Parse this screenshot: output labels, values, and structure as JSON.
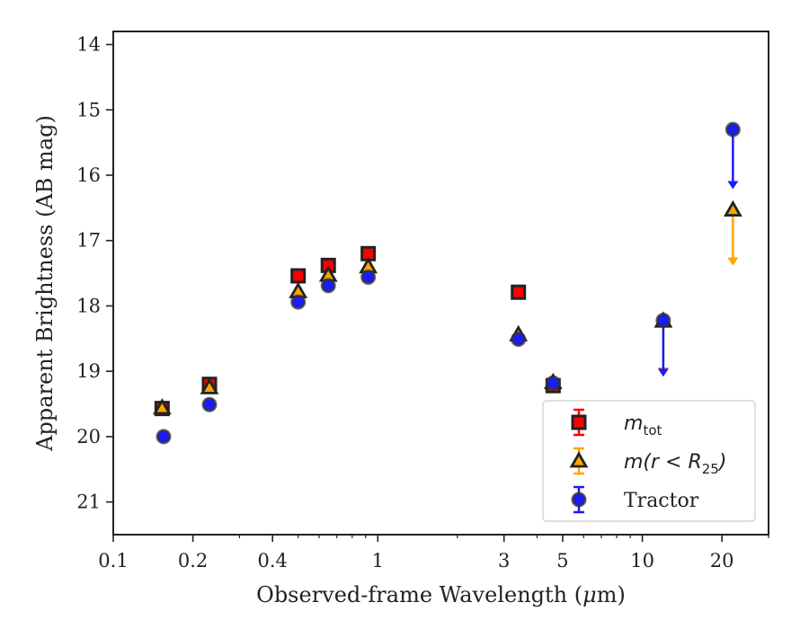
{
  "chart_data": {
    "type": "scatter",
    "xlabel_text": "Observed-frame Wavelength (",
    "xlabel_mu": "μ",
    "xlabel_tail": "m)",
    "ylabel": "Apparent Brightness (AB mag)",
    "xscale": "log",
    "xlim": [
      0.1,
      30
    ],
    "ylim": [
      21.5,
      13.8
    ],
    "y_inverted": true,
    "grid": false,
    "legend_position": "lower-right",
    "x_ticks": [
      {
        "value": 0.1,
        "label": "0.1"
      },
      {
        "value": 0.2,
        "label": "0.2"
      },
      {
        "value": 0.4,
        "label": "0.4"
      },
      {
        "value": 1,
        "label": "1"
      },
      {
        "value": 3,
        "label": "3"
      },
      {
        "value": 5,
        "label": "5"
      },
      {
        "value": 10,
        "label": "10"
      },
      {
        "value": 20,
        "label": "20"
      }
    ],
    "y_ticks": [
      {
        "value": 14,
        "label": "14"
      },
      {
        "value": 15,
        "label": "15"
      },
      {
        "value": 16,
        "label": "16"
      },
      {
        "value": 17,
        "label": "17"
      },
      {
        "value": 18,
        "label": "18"
      },
      {
        "value": 19,
        "label": "19"
      },
      {
        "value": 20,
        "label": "20"
      },
      {
        "value": 21,
        "label": "21"
      }
    ],
    "series": [
      {
        "name": "m_tot",
        "label_main": "m",
        "label_sub": "tot",
        "label_rest": "",
        "marker": "square",
        "color": "#ff0000",
        "errcolor": "#ff0000",
        "points": [
          {
            "x": 0.153,
            "y": 19.57
          },
          {
            "x": 0.231,
            "y": 19.2
          },
          {
            "x": 0.5,
            "y": 17.54
          },
          {
            "x": 0.65,
            "y": 17.38
          },
          {
            "x": 0.92,
            "y": 17.2
          },
          {
            "x": 3.4,
            "y": 17.79
          },
          {
            "x": 4.6,
            "y": 19.22
          }
        ],
        "upper_limits": []
      },
      {
        "name": "m(r<R25)",
        "label_main": "m(r < R",
        "label_sub": "25",
        "label_rest": ")",
        "marker": "triangle",
        "color": "#ffa500",
        "errcolor": "#ffa500",
        "points": [
          {
            "x": 0.153,
            "y": 19.56
          },
          {
            "x": 0.231,
            "y": 19.25
          },
          {
            "x": 0.5,
            "y": 17.78
          },
          {
            "x": 0.65,
            "y": 17.53
          },
          {
            "x": 0.92,
            "y": 17.4
          },
          {
            "x": 3.4,
            "y": 18.44
          },
          {
            "x": 4.6,
            "y": 19.17
          }
        ],
        "upper_limits": [
          {
            "x": 12,
            "y": 18.23,
            "to": 19.05
          },
          {
            "x": 22,
            "y": 16.53,
            "to": 17.37
          }
        ]
      },
      {
        "name": "Tractor",
        "label_main": "Tractor",
        "label_sub": "",
        "label_rest": "",
        "marker": "circle",
        "color": "#1a1aff",
        "errcolor": "#1a1aff",
        "points": [
          {
            "x": 0.155,
            "y": 20.0
          },
          {
            "x": 0.231,
            "y": 19.51
          },
          {
            "x": 0.5,
            "y": 17.94
          },
          {
            "x": 0.65,
            "y": 17.69
          },
          {
            "x": 0.92,
            "y": 17.56
          },
          {
            "x": 3.4,
            "y": 18.51
          },
          {
            "x": 4.6,
            "y": 19.18
          }
        ],
        "upper_limits": [
          {
            "x": 12,
            "y": 18.22,
            "to": 19.07
          },
          {
            "x": 22,
            "y": 15.3,
            "to": 16.2
          }
        ]
      }
    ]
  }
}
